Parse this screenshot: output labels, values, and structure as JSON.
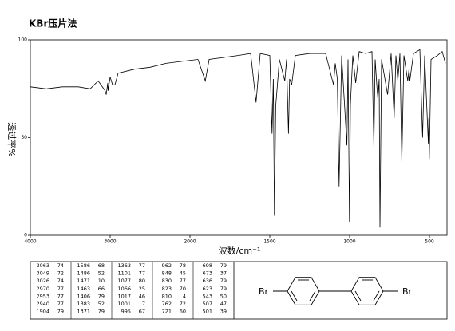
{
  "chart_data": {
    "type": "line",
    "title": "KBr压片法",
    "ylabel": "透过率%",
    "xlabel": "波数/cm⁻¹",
    "xlim": [
      4000,
      400
    ],
    "ylim": [
      0,
      100
    ],
    "xticks": [
      4000,
      3000,
      2000,
      1500,
      1000,
      500
    ],
    "yticks": [
      0,
      50,
      100
    ],
    "color": "#000000",
    "x": [
      4000,
      3800,
      3600,
      3400,
      3250,
      3150,
      3063,
      3049,
      3030,
      3026,
      3000,
      2970,
      2953,
      2940,
      2900,
      2700,
      2500,
      2300,
      2100,
      1950,
      1904,
      1880,
      1700,
      1620,
      1586,
      1560,
      1500,
      1486,
      1478,
      1471,
      1463,
      1440,
      1406,
      1395,
      1383,
      1376,
      1371,
      1363,
      1340,
      1250,
      1150,
      1101,
      1090,
      1077,
      1066,
      1050,
      1017,
      1010,
      1001,
      995,
      980,
      962,
      940,
      900,
      860,
      848,
      840,
      830,
      823,
      815,
      810,
      800,
      762,
      740,
      721,
      710,
      698,
      685,
      673,
      660,
      636,
      628,
      623,
      600,
      560,
      543,
      530,
      507,
      504,
      501,
      490,
      450,
      420,
      400
    ],
    "values": [
      76,
      75,
      76,
      76,
      75,
      79,
      74,
      72,
      78,
      74,
      81,
      77,
      77,
      77,
      83,
      85,
      86,
      88,
      89,
      90,
      79,
      90,
      92,
      93,
      68,
      93,
      92,
      52,
      80,
      10,
      66,
      90,
      79,
      90,
      52,
      80,
      79,
      77,
      92,
      93,
      93,
      77,
      88,
      80,
      25,
      92,
      46,
      90,
      7,
      67,
      92,
      78,
      94,
      93,
      94,
      45,
      90,
      77,
      70,
      80,
      4,
      90,
      72,
      93,
      60,
      92,
      79,
      93,
      37,
      92,
      79,
      85,
      79,
      93,
      95,
      50,
      92,
      47,
      60,
      39,
      90,
      92,
      94,
      88
    ]
  },
  "peaks": [
    [
      [
        3063,
        74
      ],
      [
        3049,
        72
      ],
      [
        3026,
        74
      ],
      [
        2970,
        77
      ],
      [
        2953,
        77
      ],
      [
        2940,
        77
      ],
      [
        1904,
        79
      ]
    ],
    [
      [
        1586,
        68
      ],
      [
        1486,
        52
      ],
      [
        1471,
        10
      ],
      [
        1463,
        66
      ],
      [
        1406,
        79
      ],
      [
        1383,
        52
      ],
      [
        1371,
        79
      ]
    ],
    [
      [
        1363,
        77
      ],
      [
        1101,
        77
      ],
      [
        1077,
        80
      ],
      [
        1066,
        25
      ],
      [
        1017,
        46
      ],
      [
        1001,
        7
      ],
      [
        995,
        67
      ]
    ],
    [
      [
        962,
        78
      ],
      [
        848,
        45
      ],
      [
        830,
        77
      ],
      [
        823,
        70
      ],
      [
        810,
        4
      ],
      [
        762,
        72
      ],
      [
        721,
        60
      ]
    ],
    [
      [
        698,
        79
      ],
      [
        673,
        37
      ],
      [
        636,
        79
      ],
      [
        623,
        79
      ],
      [
        543,
        50
      ],
      [
        507,
        47
      ],
      [
        501,
        39
      ]
    ]
  ],
  "structure": {
    "atoms": [
      "Br",
      "Br"
    ]
  }
}
